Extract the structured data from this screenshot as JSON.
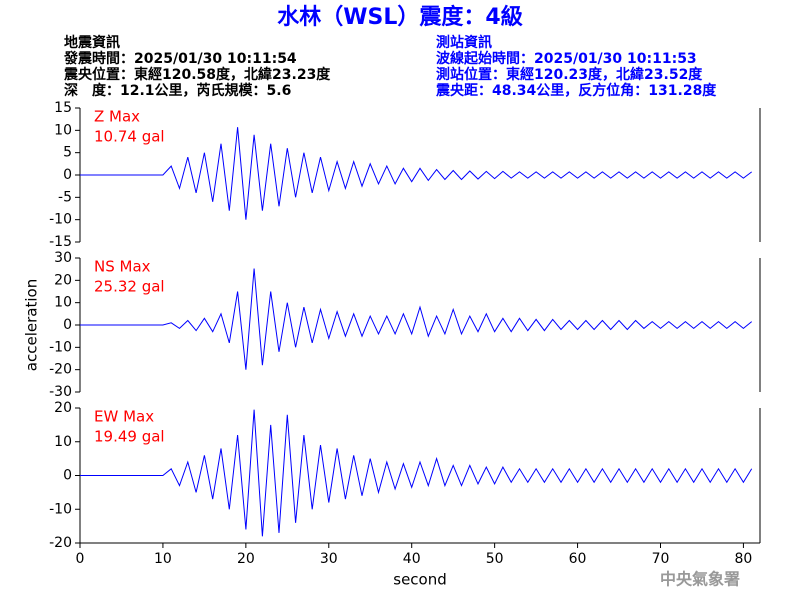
{
  "header": {
    "title": "水林（WSL）震度：4級",
    "left": [
      "地震資訊",
      "發震時間：2025/01/30 10:11:54",
      "震央位置：東經120.58度，北緯23.23度",
      "深　度：12.1公里，芮氏規模：5.6"
    ],
    "right": [
      "測站資訊",
      "波線起始時間：2025/01/30 10:11:53",
      "測站位置：東經120.23度，北緯23.52度",
      "震央距：48.34公里，反方位角：131.28度"
    ],
    "footer": "中央氣象署"
  },
  "chart_data": [
    {
      "type": "line",
      "annotations": [
        "Z Max",
        "10.74 gal"
      ],
      "xlim": [
        0,
        82
      ],
      "ylim": [
        -15,
        15
      ],
      "yticks": [
        -15,
        -10,
        -5,
        0,
        5,
        10,
        15
      ],
      "x": [
        0,
        1,
        2,
        3,
        4,
        5,
        6,
        7,
        8,
        9,
        10,
        11,
        12,
        13,
        14,
        15,
        16,
        17,
        18,
        19,
        20,
        21,
        22,
        23,
        24,
        25,
        26,
        27,
        28,
        29,
        30,
        31,
        32,
        33,
        34,
        35,
        36,
        37,
        38,
        39,
        40,
        41,
        42,
        43,
        44,
        45,
        46,
        47,
        48,
        49,
        50,
        51,
        52,
        53,
        54,
        55,
        56,
        57,
        58,
        59,
        60,
        61,
        62,
        63,
        64,
        65,
        66,
        67,
        68,
        69,
        70,
        71,
        72,
        73,
        74,
        75,
        76,
        77,
        78,
        79,
        80,
        81
      ],
      "series": [
        {
          "color": "#0000ff",
          "values": [
            0,
            0,
            0,
            0,
            0,
            0,
            0,
            0,
            0,
            0,
            0,
            2,
            -3,
            4,
            -4,
            5,
            -6,
            7,
            -8,
            10.7,
            -10,
            9,
            -8,
            7,
            -7,
            6,
            -5,
            5,
            -4,
            4,
            -3.5,
            3,
            -3,
            3,
            -2.5,
            2.5,
            -2,
            2,
            -2,
            1.5,
            -1.5,
            1.5,
            -1.2,
            1.2,
            -1,
            1,
            -1,
            0.9,
            -0.9,
            0.8,
            -0.8,
            0.8,
            -0.7,
            0.7,
            -0.7,
            0.7,
            -0.7,
            0.7,
            -0.7,
            0.7,
            -0.7,
            0.7,
            -0.7,
            0.7,
            -0.7,
            0.7,
            -0.7,
            0.7,
            -0.7,
            0.7,
            -0.7,
            0.7,
            -0.7,
            0.7,
            -0.7,
            0.7,
            -0.7,
            0.7,
            -0.7,
            0.7,
            -0.7,
            0.7
          ]
        }
      ]
    },
    {
      "type": "line",
      "annotations": [
        "NS Max",
        "25.32 gal"
      ],
      "ylabel": "acceleration",
      "xlim": [
        0,
        82
      ],
      "ylim": [
        -30,
        30
      ],
      "yticks": [
        -30,
        -20,
        -10,
        0,
        10,
        20,
        30
      ],
      "x": [
        0,
        1,
        2,
        3,
        4,
        5,
        6,
        7,
        8,
        9,
        10,
        11,
        12,
        13,
        14,
        15,
        16,
        17,
        18,
        19,
        20,
        21,
        22,
        23,
        24,
        25,
        26,
        27,
        28,
        29,
        30,
        31,
        32,
        33,
        34,
        35,
        36,
        37,
        38,
        39,
        40,
        41,
        42,
        43,
        44,
        45,
        46,
        47,
        48,
        49,
        50,
        51,
        52,
        53,
        54,
        55,
        56,
        57,
        58,
        59,
        60,
        61,
        62,
        63,
        64,
        65,
        66,
        67,
        68,
        69,
        70,
        71,
        72,
        73,
        74,
        75,
        76,
        77,
        78,
        79,
        80,
        81
      ],
      "series": [
        {
          "color": "#0000ff",
          "values": [
            0,
            0,
            0,
            0,
            0,
            0,
            0,
            0,
            0,
            0,
            0,
            1,
            -1.5,
            2,
            -2.5,
            3,
            -3,
            5,
            -8,
            15,
            -20,
            25.3,
            -18,
            15,
            -12,
            10,
            -10,
            8,
            -8,
            7,
            -6,
            6,
            -5,
            5,
            -5,
            4,
            -4,
            4,
            -4,
            5,
            -4,
            8,
            -5,
            4,
            -4,
            7,
            -4,
            4,
            -3,
            5,
            -3,
            3,
            -3,
            3,
            -2.5,
            2.5,
            -2.5,
            2.5,
            -2,
            2,
            -2,
            2,
            -2,
            2,
            -2,
            2,
            -2,
            2,
            -1.5,
            1.5,
            -1.5,
            1.5,
            -1.5,
            1.5,
            -1.5,
            1.5,
            -1.5,
            1.5,
            -1.5,
            1.5,
            -1.5,
            1.5
          ]
        }
      ]
    },
    {
      "type": "line",
      "annotations": [
        "EW Max",
        "19.49 gal"
      ],
      "xlabel": "second",
      "xlim": [
        0,
        82
      ],
      "xticks": [
        0,
        10,
        20,
        30,
        40,
        50,
        60,
        70,
        80
      ],
      "ylim": [
        -20,
        20
      ],
      "yticks": [
        -20,
        -10,
        0,
        10,
        20
      ],
      "x": [
        0,
        1,
        2,
        3,
        4,
        5,
        6,
        7,
        8,
        9,
        10,
        11,
        12,
        13,
        14,
        15,
        16,
        17,
        18,
        19,
        20,
        21,
        22,
        23,
        24,
        25,
        26,
        27,
        28,
        29,
        30,
        31,
        32,
        33,
        34,
        35,
        36,
        37,
        38,
        39,
        40,
        41,
        42,
        43,
        44,
        45,
        46,
        47,
        48,
        49,
        50,
        51,
        52,
        53,
        54,
        55,
        56,
        57,
        58,
        59,
        60,
        61,
        62,
        63,
        64,
        65,
        66,
        67,
        68,
        69,
        70,
        71,
        72,
        73,
        74,
        75,
        76,
        77,
        78,
        79,
        80,
        81
      ],
      "series": [
        {
          "color": "#0000ff",
          "values": [
            0,
            0,
            0,
            0,
            0,
            0,
            0,
            0,
            0,
            0,
            0,
            2,
            -3,
            4,
            -5,
            6,
            -7,
            8,
            -10,
            12,
            -16,
            19.5,
            -18,
            15,
            -17,
            18,
            -14,
            12,
            -10,
            9,
            -8,
            8,
            -7,
            6,
            -6,
            5,
            -5,
            4,
            -4,
            3.5,
            -3.5,
            4,
            -3,
            5,
            -3,
            3,
            -3,
            3,
            -2.5,
            2.5,
            -2.5,
            2.5,
            -2,
            2,
            -2,
            2,
            -2,
            2,
            -2,
            2,
            -2,
            2,
            -2,
            2,
            -2,
            2,
            -2,
            2,
            -2,
            2,
            -2,
            2,
            -2,
            2,
            -2,
            2,
            -2,
            2,
            -2,
            2,
            -2,
            2
          ]
        }
      ]
    }
  ]
}
